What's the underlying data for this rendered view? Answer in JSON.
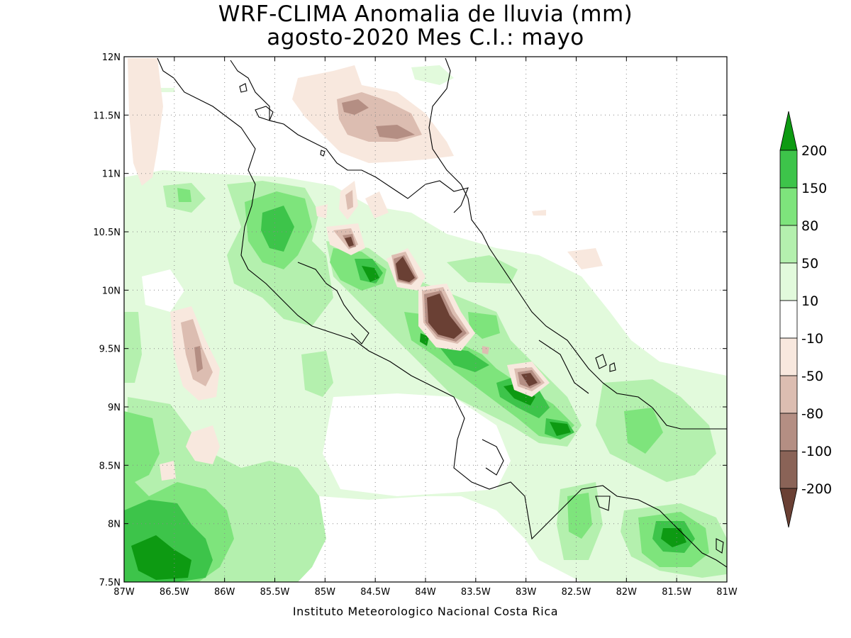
{
  "title_line1": "WRF-CLIMA Anomalia de lluvia (mm)",
  "title_line2": "agosto-2020 Mes C.I.: mayo",
  "credit": "Instituto Meteorologico Nacional Costa Rica",
  "map": {
    "lon_range": [
      -87,
      -81
    ],
    "lat_range": [
      7.5,
      12
    ],
    "grid": "dotted",
    "x_ticks": [
      {
        "lon": -87,
        "label": "87W"
      },
      {
        "lon": -86.5,
        "label": "86.5W"
      },
      {
        "lon": -86,
        "label": "86W"
      },
      {
        "lon": -85.5,
        "label": "85.5W"
      },
      {
        "lon": -85,
        "label": "85W"
      },
      {
        "lon": -84.5,
        "label": "84.5W"
      },
      {
        "lon": -84,
        "label": "84W"
      },
      {
        "lon": -83.5,
        "label": "83.5W"
      },
      {
        "lon": -83,
        "label": "83W"
      },
      {
        "lon": -82.5,
        "label": "82.5W"
      },
      {
        "lon": -82,
        "label": "82W"
      },
      {
        "lon": -81.5,
        "label": "81.5W"
      },
      {
        "lon": -81,
        "label": "81W"
      }
    ],
    "y_ticks": [
      {
        "lat": 7.5,
        "label": "7.5N"
      },
      {
        "lat": 8,
        "label": "8N"
      },
      {
        "lat": 8.5,
        "label": "8.5N"
      },
      {
        "lat": 9,
        "label": "9N"
      },
      {
        "lat": 9.5,
        "label": "9.5N"
      },
      {
        "lat": 10,
        "label": "10N"
      },
      {
        "lat": 10.5,
        "label": "10.5N"
      },
      {
        "lat": 11,
        "label": "11N"
      },
      {
        "lat": 11.5,
        "label": "11.5N"
      },
      {
        "lat": 12,
        "label": "12N"
      }
    ]
  },
  "legend": {
    "boundaries": [
      "200",
      "150",
      "80",
      "50",
      "10",
      "-10",
      "-50",
      "-80",
      "-100",
      "-200"
    ],
    "colors": [
      "#0d9a12",
      "#3dc44a",
      "#7ee47c",
      "#b4f0ae",
      "#e2fadc",
      "#ffffff",
      "#f8e8de",
      "#dcbdb1",
      "#b48e83",
      "#8a6357",
      "#6a4034"
    ]
  },
  "colors": {
    "dark_green": "#0d9a12",
    "green": "#3dc44a",
    "mid_green": "#7ee47c",
    "light_green": "#b4f0ae",
    "pale_green": "#e2fadc",
    "pale_brown": "#f8e8de",
    "light_brown": "#dcbdb1",
    "brown": "#b48e83",
    "dark_brown": "#8a6357",
    "darkest_brown": "#6a4034"
  }
}
